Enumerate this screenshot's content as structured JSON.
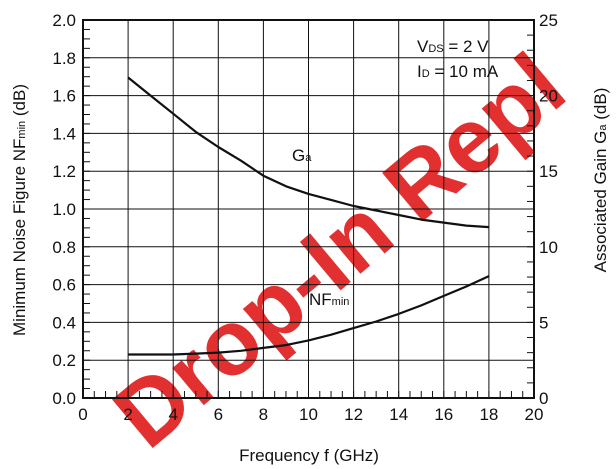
{
  "chart_data": {
    "type": "line",
    "xlabel": "Frequency  f (GHz)",
    "ylabel_left": {
      "main": "Minimum Noise Figure  NF",
      "sub": "min",
      "unit": " (dB)"
    },
    "ylabel_right": {
      "main": "Associated Gain  G",
      "sub": "a",
      "unit": " (dB)"
    },
    "xlim": [
      0,
      20
    ],
    "ylim_left": [
      0.0,
      2.0
    ],
    "ylim_right": [
      0,
      25
    ],
    "x_ticks": [
      "0",
      "2",
      "4",
      "6",
      "8",
      "10",
      "12",
      "14",
      "16",
      "18",
      "20"
    ],
    "y_left_ticks": [
      "0.0",
      "0.2",
      "0.4",
      "0.6",
      "0.8",
      "1.0",
      "1.2",
      "1.4",
      "1.6",
      "1.8",
      "2.0"
    ],
    "y_right_ticks": [
      "0",
      "5",
      "10",
      "15",
      "20",
      "25"
    ],
    "grid": true,
    "conditions": [
      {
        "main": "V",
        "sub": "DS",
        "rest": " = 2 V"
      },
      {
        "main": "I",
        "sub": "D",
        "rest": " = 10 mA"
      }
    ],
    "series": [
      {
        "name": "G",
        "name_sub": "a",
        "axis": "right",
        "x": [
          2,
          3,
          4,
          5,
          6,
          7,
          8,
          9,
          10,
          11,
          12,
          13,
          14,
          15,
          16,
          17,
          18
        ],
        "y": [
          21.2,
          20.0,
          18.8,
          17.6,
          16.6,
          15.7,
          14.7,
          14.0,
          13.5,
          13.1,
          12.7,
          12.4,
          12.1,
          11.8,
          11.6,
          11.4,
          11.3
        ]
      },
      {
        "name": "NF",
        "name_sub": "min",
        "axis": "left",
        "x": [
          2,
          3,
          4,
          5,
          6,
          7,
          8,
          9,
          10,
          11,
          12,
          13,
          14,
          15,
          16,
          17,
          18
        ],
        "y": [
          0.23,
          0.23,
          0.23,
          0.235,
          0.24,
          0.25,
          0.265,
          0.28,
          0.305,
          0.335,
          0.37,
          0.405,
          0.445,
          0.49,
          0.54,
          0.59,
          0.645
        ]
      }
    ]
  },
  "watermark": {
    "text": "Drop-In Repl",
    "color": "#e23030"
  }
}
